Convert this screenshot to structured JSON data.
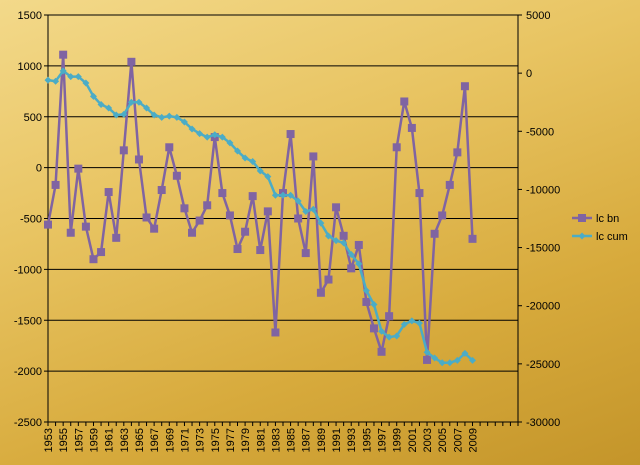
{
  "chart_data": {
    "type": "line",
    "title": "",
    "xlabel": "",
    "ylabel": "",
    "x": [
      1953,
      1954,
      1955,
      1956,
      1957,
      1958,
      1959,
      1960,
      1961,
      1962,
      1963,
      1964,
      1965,
      1966,
      1967,
      1968,
      1969,
      1970,
      1971,
      1972,
      1973,
      1974,
      1975,
      1976,
      1977,
      1978,
      1979,
      1980,
      1981,
      1982,
      1983,
      1984,
      1985,
      1986,
      1987,
      1988,
      1989,
      1990,
      1991,
      1992,
      1993,
      1994,
      1995,
      1996,
      1997,
      1998,
      1999,
      2000,
      2001,
      2002,
      2003,
      2004,
      2005,
      2006,
      2007,
      2008,
      2009
    ],
    "x_tick_labels": [
      "1953",
      "1955",
      "1957",
      "1959",
      "1961",
      "1963",
      "1965",
      "1967",
      "1969",
      "1971",
      "1973",
      "1975",
      "1977",
      "1979",
      "1981",
      "1983",
      "1985",
      "1987",
      "1989",
      "1991",
      "1993",
      "1995",
      "1997",
      "1999",
      "2001",
      "2003",
      "2005",
      "2007",
      "2009"
    ],
    "x_axis_end": 2015,
    "y_left_ticks": [
      "1500",
      "1000",
      "500",
      "0",
      "-500",
      "-1000",
      "-1500",
      "-2000",
      "-2500"
    ],
    "y_right_ticks": [
      "5000",
      "0",
      "-5000",
      "-10000",
      "-15000",
      "-20000",
      "-25000",
      "-30000"
    ],
    "ylim_left": [
      -2500,
      1500
    ],
    "ylim_right": [
      -30000,
      5000
    ],
    "grid": "horizontal",
    "legend_position": "right",
    "series": [
      {
        "name": "lc bn",
        "axis": "left",
        "color": "#8064a2",
        "marker": "square",
        "values": [
          -560,
          -170,
          1110,
          -640,
          -10,
          -580,
          -900,
          -830,
          -240,
          -690,
          170,
          1040,
          80,
          -490,
          -600,
          -220,
          200,
          -80,
          -400,
          -640,
          -520,
          -370,
          300,
          -250,
          -470,
          -800,
          -630,
          -280,
          -810,
          -430,
          -1620,
          -250,
          330,
          -500,
          -840,
          110,
          -1230,
          -1100,
          -390,
          -670,
          -990,
          -760,
          -1320,
          -1580,
          -1810,
          -1460,
          200,
          650,
          390,
          -250,
          -1890,
          -650,
          -470,
          -170,
          150,
          800,
          -700
        ]
      },
      {
        "name": "lc cum",
        "axis": "right",
        "color": "#4bacc6",
        "marker": "diamond",
        "values": [
          -600,
          -700,
          200,
          -300,
          -300,
          -850,
          -2000,
          -2700,
          -3000,
          -3600,
          -3550,
          -2500,
          -2500,
          -3000,
          -3600,
          -3800,
          -3700,
          -3800,
          -4200,
          -4800,
          -5200,
          -5500,
          -5300,
          -5500,
          -6000,
          -6700,
          -7300,
          -7600,
          -8400,
          -8900,
          -10500,
          -10500,
          -10500,
          -11000,
          -11900,
          -11700,
          -12900,
          -14000,
          -14400,
          -14600,
          -15600,
          -16400,
          -18700,
          -19900,
          -22200,
          -22700,
          -22600,
          -21600,
          -21300,
          -21500,
          -24000,
          -24500,
          -24900,
          -24900,
          -24700,
          -24100,
          -24700
        ]
      }
    ]
  }
}
